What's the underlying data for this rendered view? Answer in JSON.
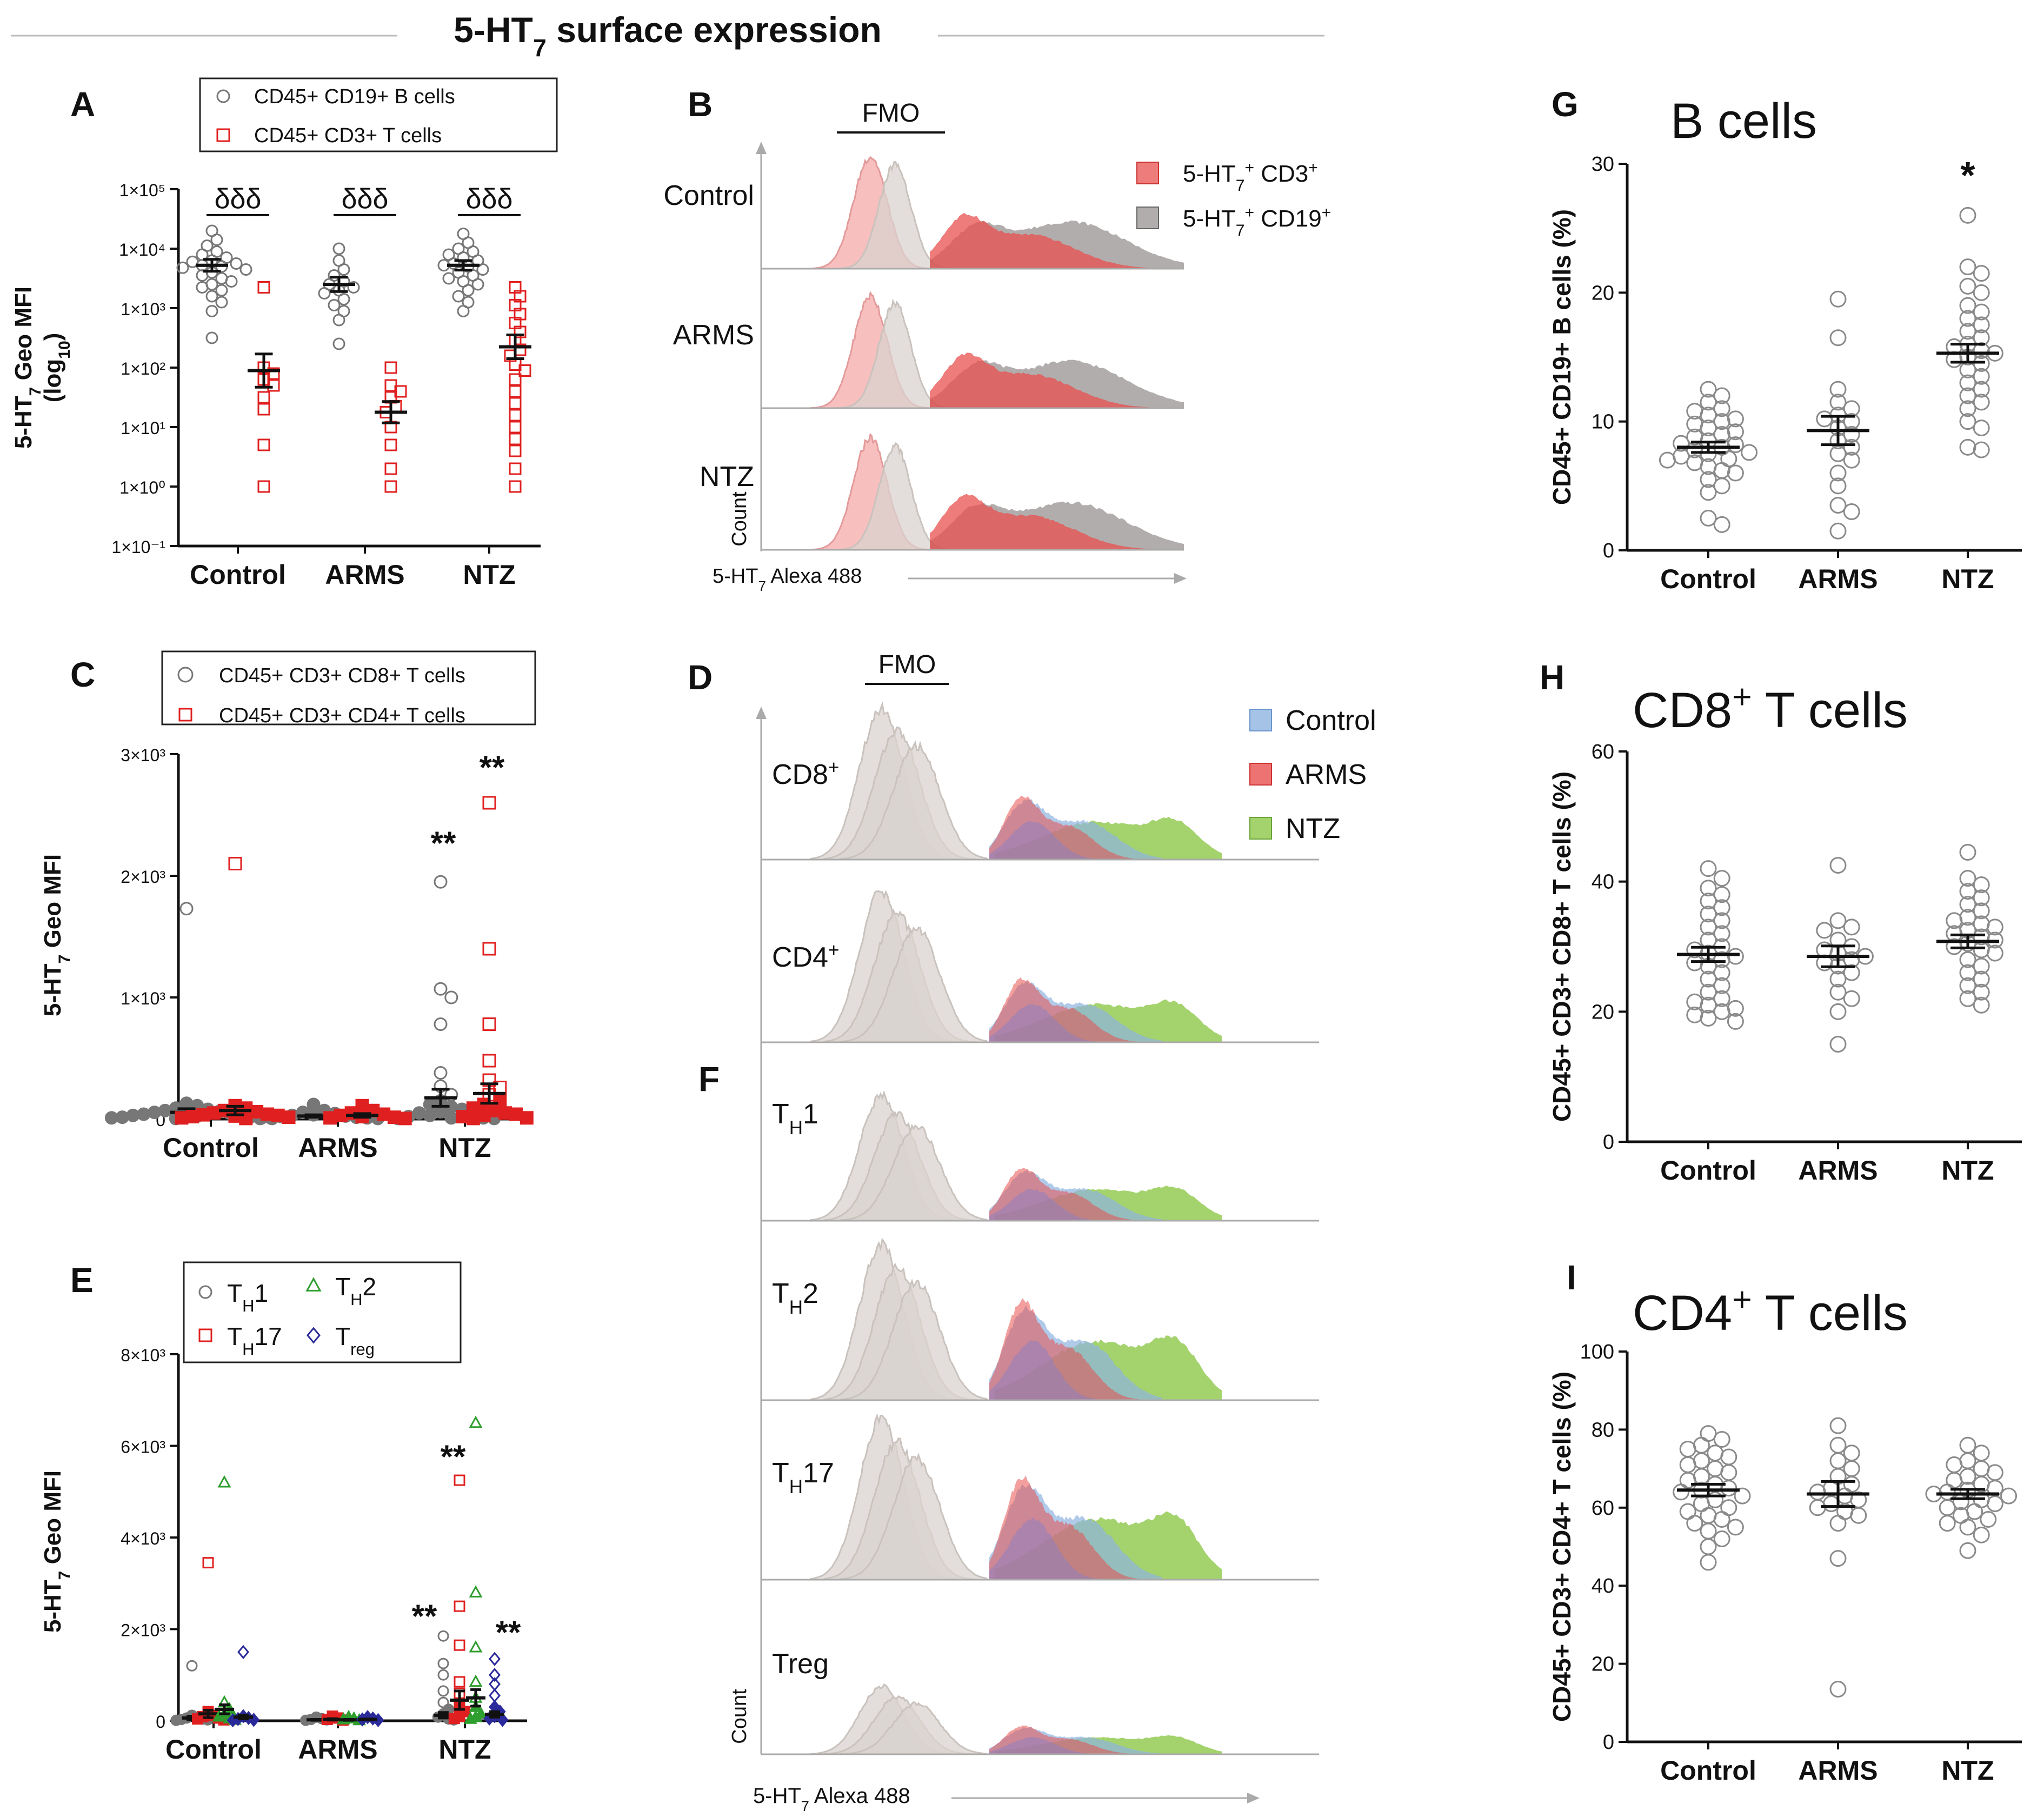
{
  "figure": {
    "title": "5-HT",
    "title_sub": "7",
    "title_rest": " surface expression"
  },
  "colors": {
    "grey_marker": "#777777",
    "red_marker": "#e02020",
    "green_marker": "#2e9e2e",
    "navy_marker": "#2a2a9a",
    "hist_grey_light": "#d9d3cf",
    "hist_pink": "#f5a9a9",
    "hist_red": "#e8504f",
    "hist_dark": "#7f7777",
    "hist_blue": "#8fb4e0",
    "hist_green": "#8dc84a"
  },
  "chart_data": [
    {
      "panel": "A",
      "type": "scatter",
      "scale": "log",
      "ylabel": "5-HT7 Geo MFI (log10)",
      "ylabel_line1": "5-HT",
      "ylabel_line1_sub": "7",
      "ylabel_line1_rest": " Geo MFI",
      "ylabel_line2": "(log",
      "ylabel_line2_sub": "10",
      "ylabel_line2_rest": ")",
      "ytick_labels": [
        "1×10⁻¹",
        "1×10⁰",
        "1×10¹",
        "1×10²",
        "1×10³",
        "1×10⁴",
        "1×10⁵"
      ],
      "ylim_log10": [
        -1,
        5
      ],
      "categories": [
        "Control",
        "ARMS",
        "NTZ"
      ],
      "legend": [
        "CD45+ CD19+ B cells",
        "CD45+ CD3+ T cells"
      ],
      "significance": [
        "δδδ",
        "δδδ",
        "δδδ"
      ],
      "series": [
        {
          "name": "CD45+ CD19+ B cells",
          "marker": "circle",
          "color": "grey",
          "means_log10": [
            3.72,
            3.4,
            3.72
          ],
          "sem_log10": [
            0.1,
            0.12,
            0.08
          ],
          "points_log10": [
            [
              4.3,
              4.15,
              4.05,
              3.95,
              3.9,
              3.85,
              3.8,
              3.78,
              3.75,
              3.72,
              3.7,
              3.68,
              3.65,
              3.6,
              3.55,
              3.5,
              3.45,
              3.4,
              3.35,
              3.3,
              3.2,
              3.1,
              2.95,
              2.5
            ],
            [
              4.0,
              3.8,
              3.65,
              3.55,
              3.45,
              3.4,
              3.35,
              3.3,
              3.25,
              3.15,
              3.05,
              2.95,
              2.8,
              2.4
            ],
            [
              4.25,
              4.1,
              4.0,
              3.95,
              3.9,
              3.85,
              3.8,
              3.75,
              3.72,
              3.7,
              3.65,
              3.6,
              3.55,
              3.5,
              3.45,
              3.4,
              3.3,
              3.2,
              3.1,
              2.95
            ]
          ]
        },
        {
          "name": "CD45+ CD3+ T cells",
          "marker": "square",
          "color": "red",
          "means_log10": [
            1.95,
            1.25,
            2.35
          ],
          "sem_log10": [
            0.28,
            0.18,
            0.2
          ],
          "points_log10": [
            [
              3.35,
              2.0,
              1.9,
              1.8,
              1.7,
              1.5,
              1.3,
              0.7,
              0.0
            ],
            [
              2.0,
              1.7,
              1.6,
              1.5,
              1.35,
              1.25,
              1.0,
              0.7,
              0.3,
              0.0
            ],
            [
              3.35,
              3.2,
              3.05,
              2.9,
              2.75,
              2.6,
              2.45,
              2.3,
              2.2,
              2.05,
              1.95,
              1.8,
              1.6,
              1.4,
              1.2,
              1.0,
              0.8,
              0.6,
              0.3,
              0.0
            ]
          ]
        }
      ]
    },
    {
      "panel": "B",
      "type": "histogram-overlay",
      "rows": [
        "Control",
        "ARMS",
        "NTZ"
      ],
      "gate_label": "FMO",
      "xlabel": "5-HT7 Alexa 488",
      "xlabel_main": "5-HT",
      "xlabel_sub": "7",
      "xlabel_rest": " Alexa 488",
      "ylabel": "Count",
      "legend": [
        "5-HT7+ CD3+",
        "5-HT7+ CD19+"
      ],
      "legend_parts": [
        {
          "main": "5-HT",
          "sub": "7",
          "sup": "+",
          "rest": " CD3",
          "sup2": "+"
        },
        {
          "main": "5-HT",
          "sub": "7",
          "sup": "+",
          "rest": " CD19",
          "sup2": "+"
        }
      ]
    },
    {
      "panel": "C",
      "type": "scatter",
      "ylabel": "5-HT7 Geo MFI",
      "ylabel_main": "5-HT",
      "ylabel_sub": "7",
      "ylabel_rest": " Geo MFI",
      "ylim": [
        0,
        3000
      ],
      "ytick_values": [
        0,
        1000,
        2000,
        3000
      ],
      "ytick_labels": [
        "0",
        "1×10³",
        "2×10³",
        "3×10³"
      ],
      "categories": [
        "Control",
        "ARMS",
        "NTZ"
      ],
      "legend": [
        "CD45+ CD3+ CD8+ T cells",
        "CD45+ CD3+ CD4+ T cells"
      ],
      "significance": [
        [
          "",
          ""
        ],
        [
          "",
          ""
        ],
        [
          "**",
          "**"
        ]
      ],
      "series": [
        {
          "name": "CD45+ CD3+ CD8+ T cells",
          "marker": "circle",
          "color": "grey",
          "means": [
            55,
            25,
            175
          ],
          "sem": [
            30,
            10,
            70
          ],
          "points": [
            [
              1730,
              130,
              110,
              90,
              80,
              70,
              60,
              55,
              50,
              45,
              40,
              35,
              30,
              25,
              20,
              15,
              10,
              10,
              5,
              5
            ],
            [
              120,
              70,
              55,
              45,
              35,
              30,
              25,
              20,
              15,
              10,
              10,
              5,
              5
            ],
            [
              1950,
              1070,
              1000,
              780,
              380,
              270,
              200,
              150,
              120,
              100,
              80,
              60,
              50,
              40,
              30,
              20,
              10,
              10,
              5,
              5
            ]
          ]
        },
        {
          "name": "CD45+ CD3+ CD4+ T cells",
          "marker": "square",
          "color": "red",
          "means": [
            70,
            30,
            210
          ],
          "sem": [
            35,
            15,
            80
          ],
          "points": [
            [
              2100,
              110,
              90,
              70,
              60,
              50,
              40,
              35,
              30,
              25,
              20,
              15,
              10,
              5
            ],
            [
              110,
              70,
              50,
              40,
              30,
              20,
              15,
              10,
              5
            ],
            [
              2600,
              1400,
              780,
              480,
              320,
              260,
              200,
              150,
              120,
              90,
              70,
              50,
              40,
              30,
              20,
              10,
              5
            ]
          ]
        }
      ]
    },
    {
      "panel": "E",
      "type": "scatter",
      "ylabel": "5-HT7 Geo MFI",
      "ylabel_main": "5-HT",
      "ylabel_sub": "7",
      "ylabel_rest": " Geo MFI",
      "ylim": [
        0,
        8000
      ],
      "ytick_values": [
        0,
        2000,
        4000,
        6000,
        8000
      ],
      "ytick_labels": [
        "0",
        "2×10³",
        "4×10³",
        "6×10³",
        "8×10³"
      ],
      "categories": [
        "Control",
        "ARMS",
        "NTZ"
      ],
      "legend": [
        "TH1",
        "TH2",
        "TH17",
        "Treg"
      ],
      "legend_parts": [
        {
          "main": "T",
          "sub": "H",
          "rest": "1"
        },
        {
          "main": "T",
          "sub": "H",
          "rest": "2"
        },
        {
          "main": "T",
          "sub": "H",
          "rest": "17"
        },
        {
          "main": "T",
          "sub": "reg",
          "rest": ""
        }
      ],
      "significance_labels": [
        "**",
        "**",
        "**"
      ],
      "series": [
        {
          "name": "TH1",
          "marker": "circle",
          "color": "grey",
          "means": [
            60,
            20,
            120
          ],
          "sem": [
            40,
            10,
            60
          ],
          "points": [
            [
              1200,
              120,
              80,
              60,
              40,
              30,
              20,
              10
            ],
            [
              80,
              50,
              30,
              20,
              10
            ],
            [
              1850,
              1250,
              1000,
              650,
              400,
              250,
              150,
              80,
              40,
              20
            ]
          ]
        },
        {
          "name": "TH17",
          "marker": "square",
          "color": "red",
          "means": [
            150,
            30,
            450
          ],
          "sem": [
            80,
            15,
            200
          ],
          "points": [
            [
              3450,
              200,
              120,
              90,
              60,
              40,
              20
            ],
            [
              100,
              60,
              30,
              15
            ],
            [
              5250,
              2500,
              1650,
              850,
              600,
              350,
              200,
              100,
              50
            ]
          ]
        },
        {
          "name": "TH2",
          "marker": "triangle",
          "color": "green",
          "means": [
            250,
            20,
            500
          ],
          "sem": [
            100,
            10,
            180
          ],
          "points": [
            [
              5200,
              400,
              250,
              150,
              90,
              50,
              20
            ],
            [
              80,
              50,
              30,
              10
            ],
            [
              6500,
              2800,
              1600,
              850,
              500,
              300,
              150,
              80,
              40
            ]
          ]
        },
        {
          "name": "Treg",
          "marker": "diamond",
          "color": "navy",
          "means": [
            80,
            30,
            140
          ],
          "sem": [
            40,
            10,
            60
          ],
          "points": [
            [
              1500,
              100,
              60,
              40,
              20,
              10
            ],
            [
              80,
              50,
              30,
              15
            ],
            [
              1350,
              1000,
              800,
              550,
              300,
              200,
              100,
              50,
              20
            ]
          ]
        }
      ]
    },
    {
      "panel": "D",
      "type": "histogram-overlay",
      "rows": [
        "CD8+",
        "CD4+"
      ],
      "row_parts": [
        {
          "main": "CD8",
          "sup": "+"
        },
        {
          "main": "CD4",
          "sup": "+"
        }
      ],
      "gate_label": "FMO",
      "legend": [
        "Control",
        "ARMS",
        "NTZ"
      ]
    },
    {
      "panel": "F",
      "type": "histogram-overlay",
      "rows": [
        "TH1",
        "TH2",
        "TH17",
        "Treg"
      ],
      "row_parts": [
        {
          "main": "T",
          "sub": "H",
          "rest": "1"
        },
        {
          "main": "T",
          "sub": "H",
          "rest": "2"
        },
        {
          "main": "T",
          "sub": "H",
          "rest": "17"
        },
        {
          "main": "Treg",
          "sub": "",
          "rest": ""
        }
      ],
      "xlabel": "5-HT7 Alexa 488",
      "xlabel_main": "5-HT",
      "xlabel_sub": "7",
      "xlabel_rest": " Alexa 488",
      "ylabel": "Count"
    },
    {
      "panel": "G",
      "type": "scatter",
      "title": "B cells",
      "ylabel": "CD45+ CD19+ B cells (%)",
      "ylim": [
        0,
        30
      ],
      "ytick_values": [
        0,
        10,
        20,
        30
      ],
      "ytick_labels": [
        "0",
        "10",
        "20",
        "30"
      ],
      "categories": [
        "Control",
        "ARMS",
        "NTZ"
      ],
      "significance": [
        "",
        "",
        "*"
      ],
      "means": [
        8.0,
        9.3,
        15.3
      ],
      "sem": [
        0.4,
        1.1,
        0.7
      ],
      "points": [
        [
          12.5,
          12.0,
          11.5,
          11.0,
          10.8,
          10.5,
          10.2,
          10.0,
          9.8,
          9.5,
          9.2,
          9.0,
          8.8,
          8.5,
          8.3,
          8.2,
          8.0,
          7.8,
          7.6,
          7.5,
          7.3,
          7.1,
          7.0,
          6.8,
          6.5,
          6.2,
          6.0,
          5.5,
          5.0,
          4.5,
          2.5,
          2.0
        ],
        [
          19.5,
          16.5,
          12.5,
          11.5,
          11.0,
          10.5,
          10.2,
          10.0,
          9.5,
          9.0,
          8.5,
          8.0,
          7.5,
          7.0,
          6.0,
          5.0,
          3.5,
          3.0,
          1.5
        ],
        [
          26.0,
          22.0,
          21.5,
          20.5,
          20.0,
          19.0,
          18.5,
          18.0,
          17.5,
          17.0,
          16.5,
          16.0,
          15.8,
          15.5,
          15.3,
          15.0,
          14.8,
          14.5,
          14.0,
          13.5,
          13.0,
          12.5,
          12.0,
          11.5,
          11.0,
          10.0,
          9.5,
          8.0,
          7.8
        ]
      ]
    },
    {
      "panel": "H",
      "type": "scatter",
      "title": "CD8+ T cells",
      "title_main": "CD8",
      "title_sup": "+",
      "title_rest": " T cells",
      "ylabel": "CD45+ CD3+ CD8+ T cells (%)",
      "ylim": [
        0,
        60
      ],
      "ytick_values": [
        0,
        20,
        40,
        60
      ],
      "ytick_labels": [
        "0",
        "20",
        "40",
        "60"
      ],
      "categories": [
        "Control",
        "ARMS",
        "NTZ"
      ],
      "means": [
        28.8,
        28.5,
        30.8
      ],
      "sem": [
        1.1,
        1.6,
        1.0
      ],
      "points": [
        [
          42.0,
          40.5,
          39.0,
          38.0,
          37.0,
          36.0,
          35.0,
          34.0,
          33.0,
          32.0,
          31.0,
          30.0,
          29.5,
          29.0,
          28.5,
          28.0,
          27.5,
          27.0,
          26.0,
          25.0,
          24.0,
          23.0,
          22.0,
          21.5,
          21.0,
          20.5,
          20.0,
          19.5,
          19.0,
          18.5
        ],
        [
          42.5,
          34.0,
          33.0,
          32.5,
          31.0,
          30.0,
          29.5,
          29.0,
          28.5,
          28.0,
          27.5,
          27.0,
          26.0,
          25.0,
          23.0,
          22.0,
          20.0,
          15.0
        ],
        [
          44.5,
          40.5,
          39.5,
          38.5,
          37.5,
          36.5,
          35.5,
          34.5,
          34.0,
          33.5,
          33.0,
          32.5,
          32.0,
          31.5,
          31.0,
          30.5,
          30.0,
          29.5,
          29.0,
          28.0,
          27.0,
          26.0,
          25.0,
          24.0,
          23.0,
          22.0,
          21.0
        ]
      ]
    },
    {
      "panel": "I",
      "type": "scatter",
      "title": "CD4+ T cells",
      "title_main": "CD4",
      "title_sup": "+",
      "title_rest": " T cells",
      "ylabel": "CD45+ CD3+ CD4+ T cells (%)",
      "ylim": [
        0,
        100
      ],
      "ytick_values": [
        0,
        20,
        40,
        60,
        80,
        100
      ],
      "ytick_labels": [
        "0",
        "20",
        "40",
        "60",
        "80",
        "100"
      ],
      "categories": [
        "Control",
        "ARMS",
        "NTZ"
      ],
      "means": [
        64.5,
        63.5,
        63.5
      ],
      "sem": [
        1.5,
        3.2,
        1.2
      ],
      "points": [
        [
          79.0,
          77.5,
          76.0,
          75.0,
          74.0,
          73.0,
          72.0,
          71.0,
          70.0,
          69.0,
          68.0,
          67.0,
          66.0,
          65.0,
          64.5,
          64.0,
          63.0,
          62.0,
          61.0,
          60.0,
          59.0,
          58.0,
          57.0,
          56.0,
          55.0,
          54.0,
          52.0,
          50.0,
          46.0
        ],
        [
          81.0,
          76.0,
          74.0,
          72.0,
          70.0,
          68.0,
          66.0,
          65.0,
          64.0,
          63.0,
          62.0,
          61.0,
          60.0,
          59.0,
          58.0,
          56.0,
          47.0,
          13.5
        ],
        [
          76.0,
          74.0,
          72.0,
          71.0,
          70.0,
          69.0,
          68.0,
          67.0,
          66.0,
          65.0,
          64.5,
          64.0,
          63.5,
          63.0,
          62.0,
          61.5,
          61.0,
          60.0,
          59.0,
          58.0,
          57.0,
          56.0,
          55.0,
          53.0,
          49.0
        ]
      ]
    }
  ]
}
